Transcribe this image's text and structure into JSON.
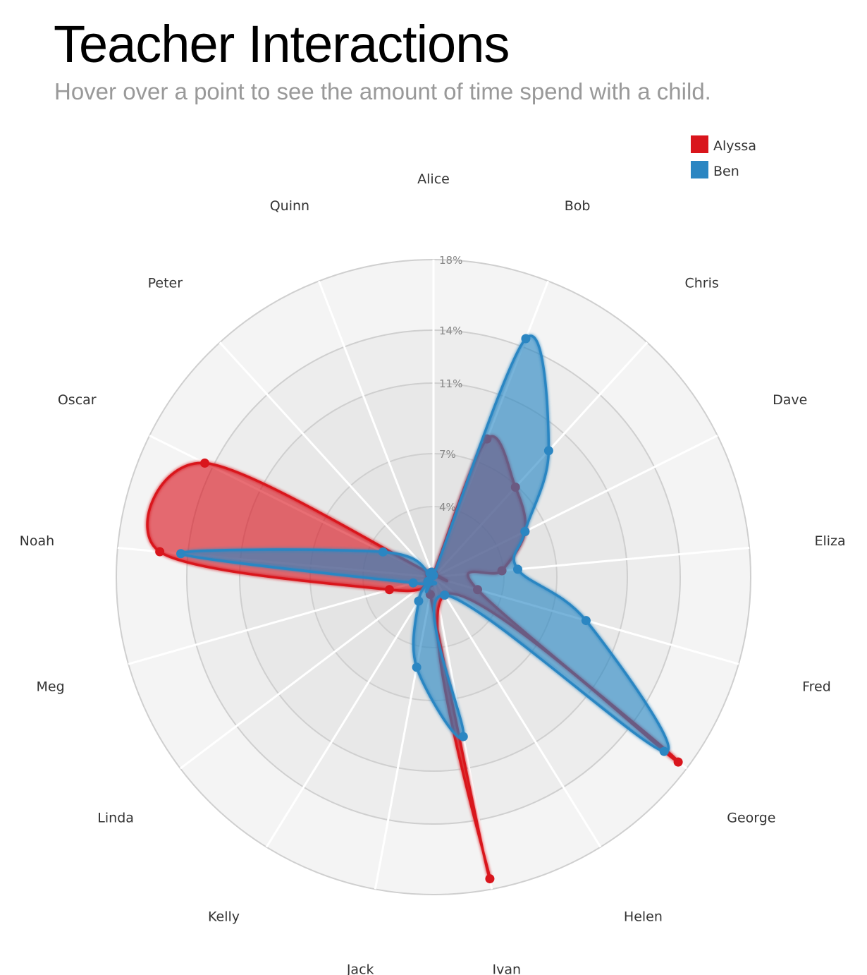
{
  "header": {
    "title": "Teacher Interactions",
    "subtitle": "Hover over a point to see the amount of time spend with a child."
  },
  "colors": {
    "Alyssa": "#d9151c",
    "Ben": "#2b86c2"
  },
  "chart_data": {
    "type": "radar",
    "title": "Teacher Interactions",
    "subtitle": "Hover over a point to see the amount of time spend with a child.",
    "axes": [
      "Alice",
      "Bob",
      "Chris",
      "Dave",
      "Eliza",
      "Fred",
      "George",
      "Helen",
      "Ivan",
      "Jack",
      "Kelly",
      "Linda",
      "Meg",
      "Noah",
      "Oscar",
      "Peter",
      "Quinn"
    ],
    "range": [
      0,
      18
    ],
    "tick_values": [
      4,
      7,
      11,
      14,
      18
    ],
    "tick_labels": [
      "4%",
      "7%",
      "11%",
      "14%",
      "18%"
    ],
    "legend_position": "top-right",
    "series": [
      {
        "name": "Alyssa",
        "values": [
          0.2,
          8.4,
          6.9,
          5.8,
          3.9,
          2.6,
          17.4,
          1.2,
          17.4,
          1.0,
          0.4,
          0.4,
          2.6,
          15.6,
          14.5,
          0.3,
          0.3
        ]
      },
      {
        "name": "Ben",
        "values": [
          0.1,
          14.5,
          9.7,
          5.8,
          4.8,
          9.0,
          16.4,
          1.2,
          9.2,
          5.2,
          1.6,
          0.4,
          1.2,
          14.4,
          3.2,
          0.3,
          0.3
        ]
      }
    ]
  }
}
